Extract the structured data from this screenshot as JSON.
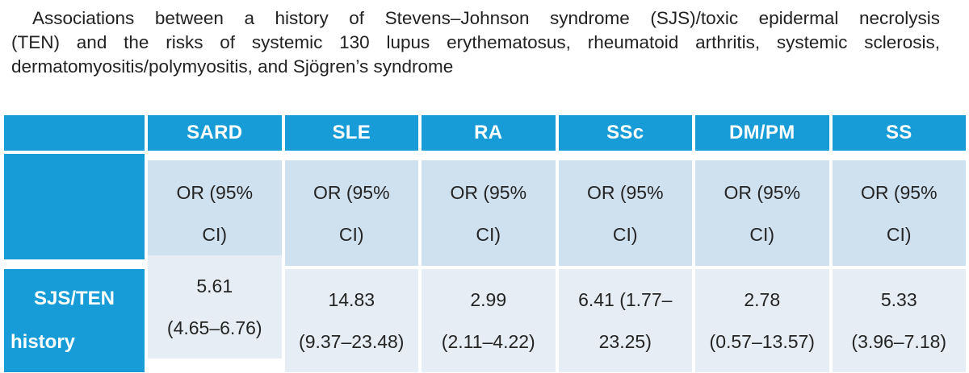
{
  "colors": {
    "header_blue": "#189cd8",
    "subrow_bg": "#cfe0ee",
    "valuerow_bg": "#e7edf5",
    "header_text": "#ffffff",
    "body_text": "#242424"
  },
  "title": {
    "full": "Associations between a history of Stevens–Johnson syndrome (SJS)/toxic epidermal necrolysis (TEN) and the risks of systemic 130 lupus erythematosus, rheumatoid arthritis, systemic sclerosis, dermatomyositis/polymyositis, and Sjögren’s syndrome",
    "lines": [
      "Associations between a history of Stevens–Johnson syndrome (SJS)/toxic epidermal necrolysis",
      "(TEN) and the risks of systemic 130 lupus erythematosus, rheumatoid arthritis, systemic sclerosis,",
      "dermatomyositis/polymyositis, and Sjögren’s syndrome"
    ]
  },
  "table": {
    "row_label": {
      "full": "SJS/TEN history",
      "line1": "SJS/TEN",
      "line2": "history"
    },
    "subheader": {
      "full": "OR (95% CI)",
      "line1": "OR (95%",
      "line2": "CI)"
    },
    "columns": [
      {
        "label": "SARD",
        "or_ci": "5.61 (4.65–6.76)",
        "value_lines": [
          "5.61",
          "(4.65–6.76)"
        ]
      },
      {
        "label": "SLE",
        "or_ci": "14.83 (9.37–23.48)",
        "value_lines": [
          "14.83",
          "(9.37–23.48)"
        ]
      },
      {
        "label": "RA",
        "or_ci": "2.99 (2.11–4.22)",
        "value_lines": [
          "2.99",
          "(2.11–4.22)"
        ]
      },
      {
        "label": "SSc",
        "or_ci": "6.41 (1.77–23.25)",
        "value_lines": [
          "6.41 (1.77–",
          "23.25)"
        ]
      },
      {
        "label": "DM/PM",
        "or_ci": "2.78 (0.57–13.57)",
        "value_lines": [
          "2.78",
          "(0.57–13.57)"
        ]
      },
      {
        "label": "SS",
        "or_ci": "5.33 (3.96–7.18)",
        "value_lines": [
          "5.33",
          "(3.96–7.18)"
        ]
      }
    ]
  }
}
